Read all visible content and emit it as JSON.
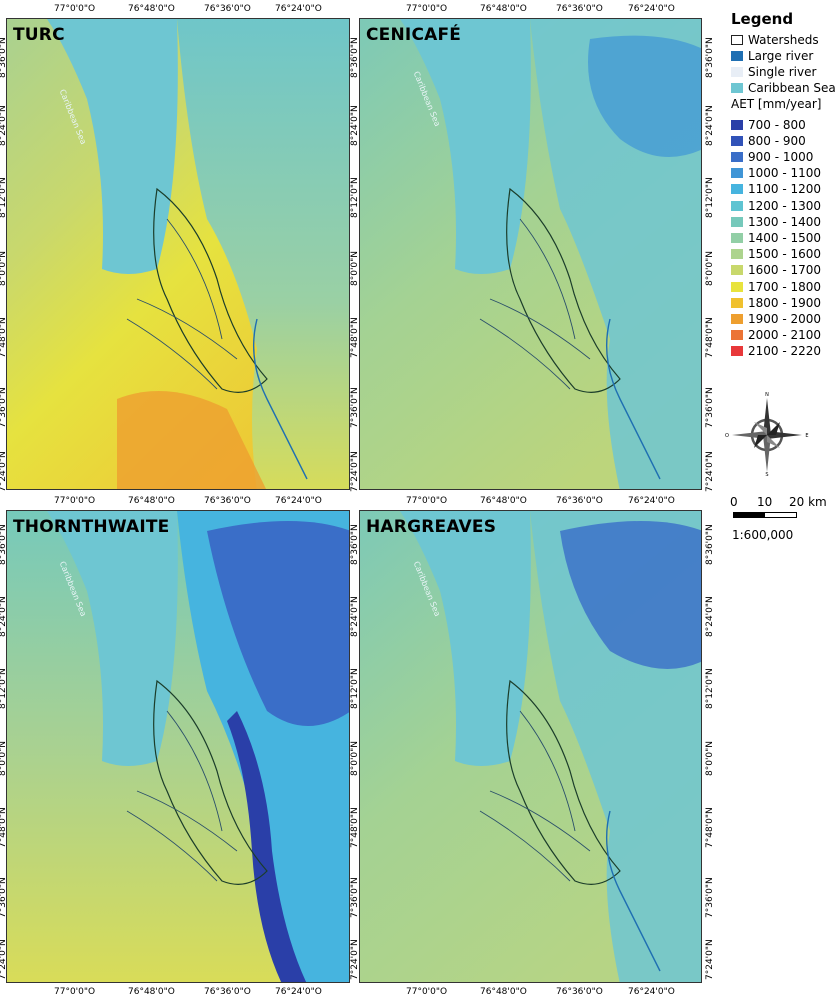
{
  "panels": [
    {
      "id": "turc",
      "title": "TURC"
    },
    {
      "id": "cenicafe",
      "title": "CENICAFÉ"
    },
    {
      "id": "thornthwaite",
      "title": "THORNTHWAITE"
    },
    {
      "id": "hargreaves",
      "title": "HARGREAVES"
    }
  ],
  "sea_label": "Caribbean Sea",
  "lon_ticks": [
    "77°0'0\"O",
    "76°48'0\"O",
    "76°36'0\"O",
    "76°24'0\"O"
  ],
  "lat_ticks": [
    "8°36'0\"N",
    "8°24'0\"N",
    "8°12'0\"N",
    "8°0'0\"N",
    "7°48'0\"N",
    "7°36'0\"N",
    "7°24'0\"N"
  ],
  "legend": {
    "title": "Legend",
    "features": [
      {
        "label": "Watersheds",
        "color": "#ffffff",
        "outline": "#222222"
      },
      {
        "label": "Large river",
        "color": "#1f6fb2"
      },
      {
        "label": "Single river",
        "color": "#e8eef6"
      },
      {
        "label": "Caribbean Sea",
        "color": "#6ec6d2"
      }
    ],
    "aet_title": "AET [mm/year]",
    "classes": [
      {
        "label": "700 - 800",
        "color": "#2a3fa8"
      },
      {
        "label": "800 - 900",
        "color": "#3152b8"
      },
      {
        "label": "900 - 1000",
        "color": "#3a6ec8"
      },
      {
        "label": "1000 - 1100",
        "color": "#3f95d6"
      },
      {
        "label": "1100 - 1200",
        "color": "#46b4df"
      },
      {
        "label": "1200 - 1300",
        "color": "#5ec4d2"
      },
      {
        "label": "1300 - 1400",
        "color": "#76c9bb"
      },
      {
        "label": "1400 - 1500",
        "color": "#92cfa6"
      },
      {
        "label": "1500 - 1600",
        "color": "#add48e"
      },
      {
        "label": "1600 - 1700",
        "color": "#c8d86c"
      },
      {
        "label": "1700 - 1800",
        "color": "#e8e33d"
      },
      {
        "label": "1800 - 1900",
        "color": "#f0c12e"
      },
      {
        "label": "1900 - 2000",
        "color": "#ee9f2f"
      },
      {
        "label": "2000 - 2100",
        "color": "#ec7435"
      },
      {
        "label": "2100 - 2220",
        "color": "#e8383a"
      }
    ]
  },
  "scale": {
    "zero": "0",
    "mid": "10",
    "end": "20 km",
    "ratio": "1:600,000"
  },
  "north": {
    "n": "N",
    "s": "S",
    "e": "E",
    "o": "O"
  }
}
